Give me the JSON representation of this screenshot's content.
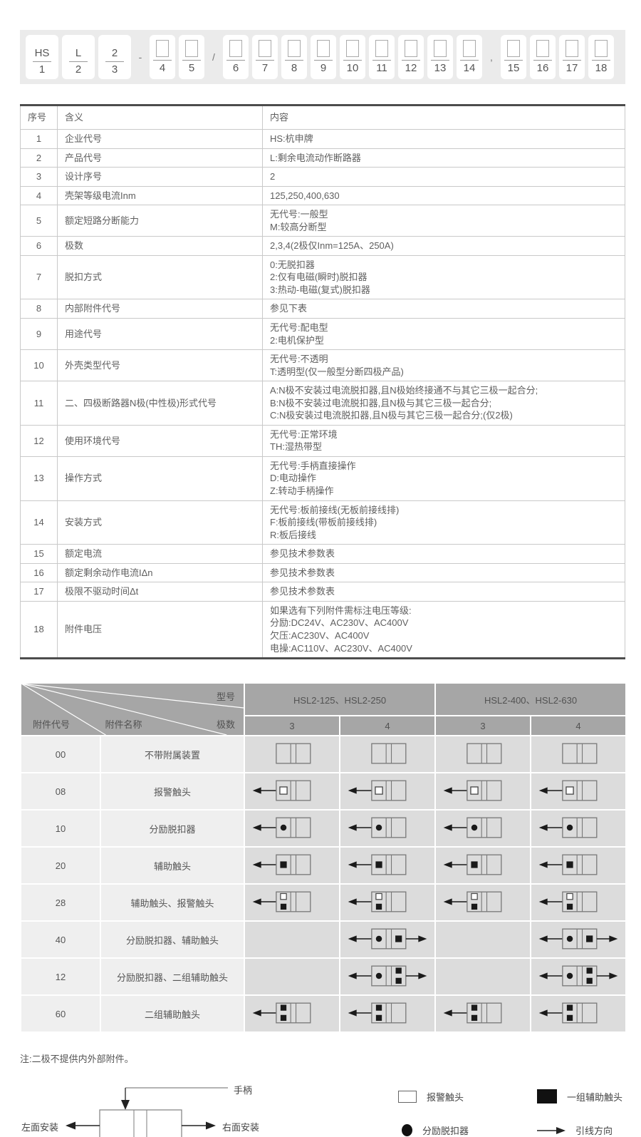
{
  "code_bar": {
    "items": [
      {
        "type": "cell",
        "value": "HS",
        "num": "1",
        "box": false
      },
      {
        "type": "cell",
        "value": "L",
        "num": "2",
        "box": false
      },
      {
        "type": "cell",
        "value": "2",
        "num": "3",
        "box": false
      },
      {
        "type": "sep",
        "value": "-"
      },
      {
        "type": "cell",
        "value": "",
        "num": "4",
        "box": true
      },
      {
        "type": "cell",
        "value": "",
        "num": "5",
        "box": true
      },
      {
        "type": "sep",
        "value": "/"
      },
      {
        "type": "cell",
        "value": "",
        "num": "6",
        "box": true
      },
      {
        "type": "cell",
        "value": "",
        "num": "7",
        "box": true
      },
      {
        "type": "cell",
        "value": "",
        "num": "8",
        "box": true
      },
      {
        "type": "cell",
        "value": "",
        "num": "9",
        "box": true
      },
      {
        "type": "cell",
        "value": "",
        "num": "10",
        "box": true
      },
      {
        "type": "cell",
        "value": "",
        "num": "11",
        "box": true
      },
      {
        "type": "cell",
        "value": "",
        "num": "12",
        "box": true
      },
      {
        "type": "cell",
        "value": "",
        "num": "13",
        "box": true
      },
      {
        "type": "cell",
        "value": "",
        "num": "14",
        "box": true
      },
      {
        "type": "sep",
        "value": ","
      },
      {
        "type": "cell",
        "value": "",
        "num": "15",
        "box": true
      },
      {
        "type": "cell",
        "value": "",
        "num": "16",
        "box": true
      },
      {
        "type": "cell",
        "value": "",
        "num": "17",
        "box": true
      },
      {
        "type": "cell",
        "value": "",
        "num": "18",
        "box": true
      }
    ]
  },
  "spec_table": {
    "headers": [
      "序号",
      "含义",
      "内容"
    ],
    "rows": [
      {
        "no": "1",
        "meaning": "企业代号",
        "content": [
          "HS:杭申牌"
        ]
      },
      {
        "no": "2",
        "meaning": "产品代号",
        "content": [
          "L:剩余电流动作断路器"
        ]
      },
      {
        "no": "3",
        "meaning": "设计序号",
        "content": [
          "2"
        ]
      },
      {
        "no": "4",
        "meaning": "壳架等级电流Inm",
        "content": [
          "125,250,400,630"
        ]
      },
      {
        "no": "5",
        "meaning": "额定短路分断能力",
        "content": [
          "无代号:一般型",
          "M:较高分断型"
        ]
      },
      {
        "no": "6",
        "meaning": "极数",
        "content": [
          "2,3,4(2极仅Inm=125A、250A)"
        ]
      },
      {
        "no": "7",
        "meaning": "脱扣方式",
        "content": [
          "0:无脱扣器",
          "2:仅有电磁(瞬时)脱扣器",
          "3:热动-电磁(复式)脱扣器"
        ]
      },
      {
        "no": "8",
        "meaning": "内部附件代号",
        "content": [
          "参见下表"
        ]
      },
      {
        "no": "9",
        "meaning": "用途代号",
        "content": [
          "无代号:配电型",
          "2:电机保护型"
        ]
      },
      {
        "no": "10",
        "meaning": "外壳类型代号",
        "content": [
          "无代号:不透明",
          "T:透明型(仅一般型分断四极产品)"
        ]
      },
      {
        "no": "11",
        "meaning": "二、四极断路器N极(中性极)形式代号",
        "content": [
          "A:N极不安装过电流脱扣器,且N极始终接通不与其它三极一起合分;",
          "B:N极不安装过电流脱扣器,且N极与其它三极一起合分;",
          "C:N极安装过电流脱扣器,且N极与其它三极一起合分;(仅2极)"
        ]
      },
      {
        "no": "12",
        "meaning": "使用环境代号",
        "content": [
          "无代号:正常环境",
          "TH:湿热带型"
        ]
      },
      {
        "no": "13",
        "meaning": "操作方式",
        "content": [
          "无代号:手柄直接操作",
          "D:电动操作",
          "Z:转动手柄操作"
        ]
      },
      {
        "no": "14",
        "meaning": "安装方式",
        "content": [
          "无代号:板前接线(无板前接线排)",
          "F:板前接线(带板前接线排)",
          "R:板后接线"
        ]
      },
      {
        "no": "15",
        "meaning": "额定电流",
        "content": [
          "参见技术参数表"
        ]
      },
      {
        "no": "16",
        "meaning": "额定剩余动作电流IΔn",
        "content": [
          "参见技术参数表"
        ]
      },
      {
        "no": "17",
        "meaning": "极限不驱动时间Δt",
        "content": [
          "参见技术参数表"
        ]
      },
      {
        "no": "18",
        "meaning": "附件电压",
        "content": [
          "如果选有下列附件需标注电压等级:",
          "分励:DC24V、AC230V、AC400V",
          "欠压:AC230V、AC400V",
          "电操:AC110V、AC230V、AC400V"
        ]
      }
    ]
  },
  "accessory_table": {
    "corner": {
      "model": "型号",
      "poles": "极数",
      "code": "附件代号",
      "name": "附件名称"
    },
    "model_groups": [
      "HSL2-125、HSL2-250",
      "HSL2-400、HSL2-630"
    ],
    "pole_cols": [
      "3",
      "4",
      "3",
      "4"
    ],
    "rows": [
      {
        "code": "00",
        "name": "不带附属装置",
        "diagrams": [
          "plain",
          "plain",
          "plain",
          "plain"
        ]
      },
      {
        "code": "08",
        "name": "报警触头",
        "diagrams": [
          "alarm",
          "alarm",
          "alarm",
          "alarm"
        ]
      },
      {
        "code": "10",
        "name": "分励脱扣器",
        "diagrams": [
          "shunt",
          "shunt",
          "shunt",
          "shunt"
        ]
      },
      {
        "code": "20",
        "name": "辅助触头",
        "diagrams": [
          "aux",
          "aux",
          "aux",
          "aux"
        ]
      },
      {
        "code": "28",
        "name": "辅助触头、报警触头",
        "diagrams": [
          "aux_alarm",
          "aux_alarm",
          "aux_alarm",
          "aux_alarm"
        ]
      },
      {
        "code": "40",
        "name": "分励脱扣器、辅助触头",
        "diagrams": [
          "none",
          "shunt_aux",
          "none",
          "shunt_aux"
        ]
      },
      {
        "code": "12",
        "name": "分励脱扣器、二组辅助触头",
        "diagrams": [
          "none",
          "shunt_2aux",
          "none",
          "shunt_2aux"
        ]
      },
      {
        "code": "60",
        "name": "二组辅助触头",
        "diagrams": [
          "aux2",
          "aux2",
          "aux2",
          "aux2"
        ]
      }
    ]
  },
  "note": "注:二极不提供内外部附件。",
  "footer": {
    "mount": {
      "handle": "手柄",
      "left_label": "左面安装",
      "right_label": "右面安装"
    },
    "legend": [
      {
        "symbol": "open-square",
        "label": "报警触头"
      },
      {
        "symbol": "filled-square",
        "label": "一组辅助触头"
      },
      {
        "symbol": "filled-circle",
        "label": "分励脱扣器"
      },
      {
        "symbol": "arrow-right",
        "label": "引线方向"
      }
    ]
  },
  "colors": {
    "header_gray": "#a6a6a6",
    "diagram_cell_gray": "#dcdcdc",
    "left_cell_gray": "#efefef",
    "bar_gray": "#ebebeb",
    "table_border_dark": "#4d4d4d",
    "symbol_black": "#1a1a1a"
  }
}
